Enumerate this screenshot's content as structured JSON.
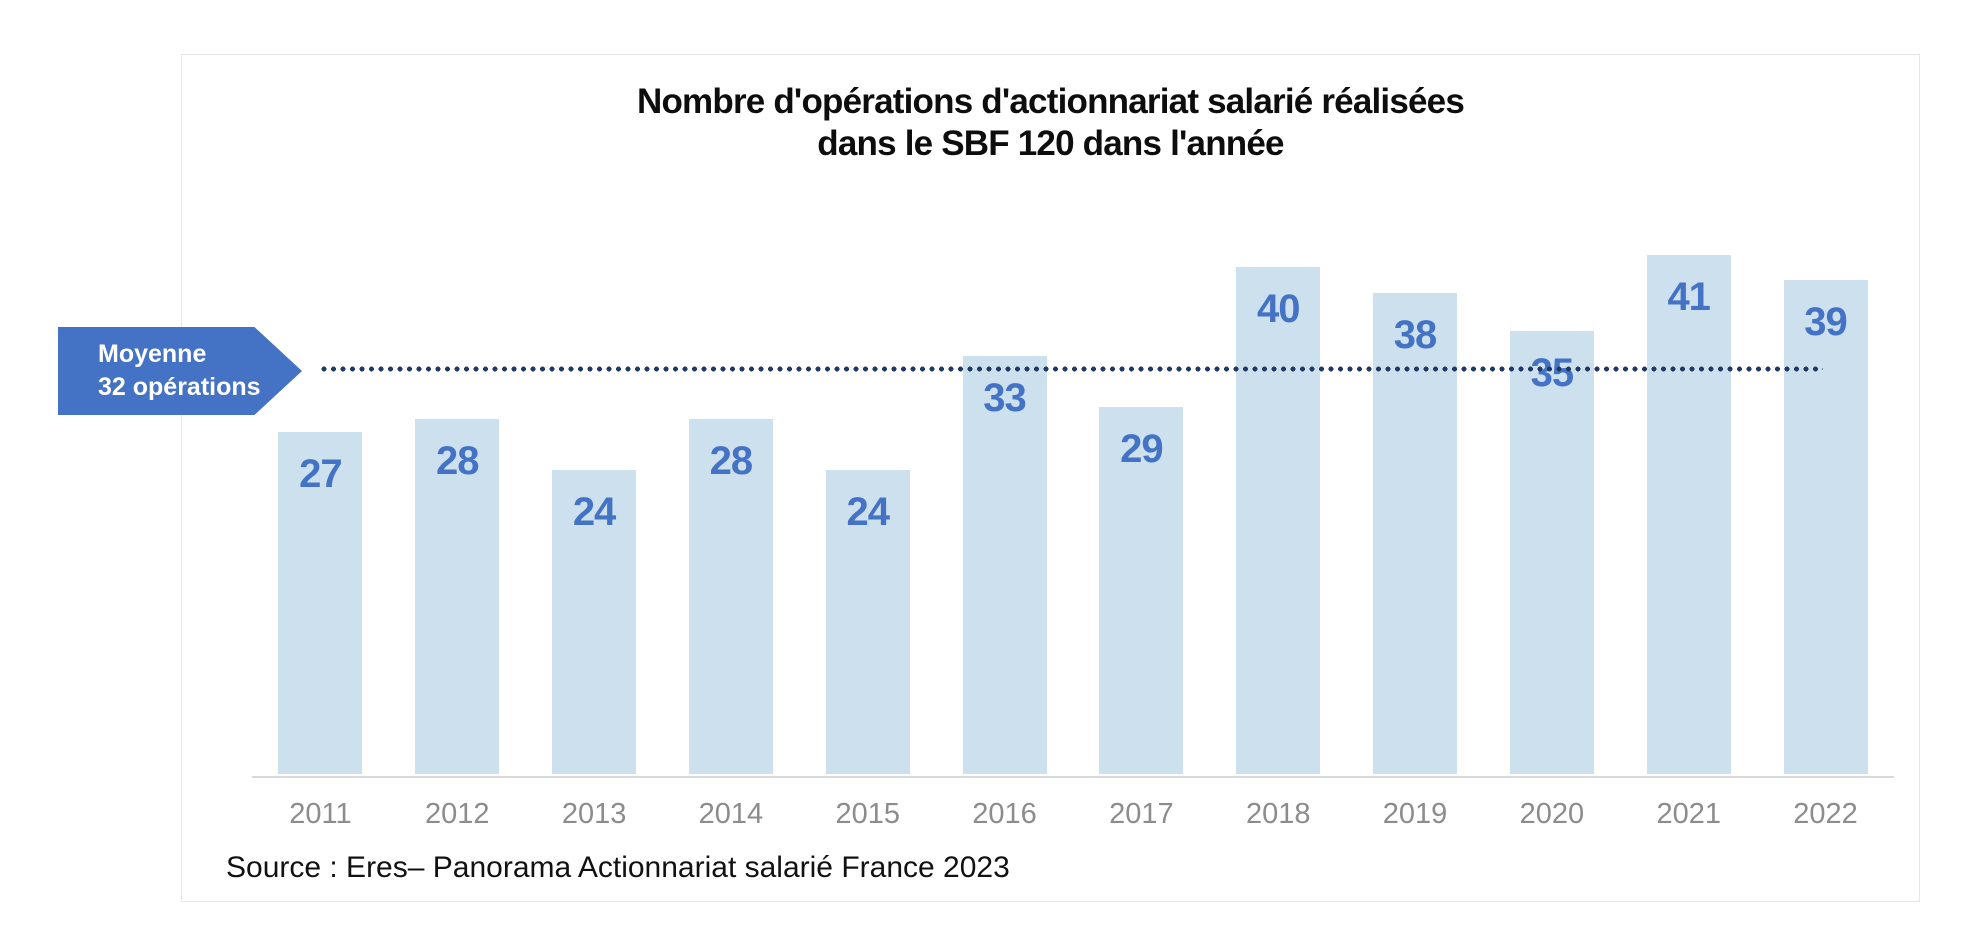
{
  "chart_data": {
    "type": "bar",
    "title_lines": [
      "Nombre d'opérations d'actionnariat salarié réalisées",
      "dans le SBF 120 dans l'année"
    ],
    "categories": [
      "2011",
      "2012",
      "2013",
      "2014",
      "2015",
      "2016",
      "2017",
      "2018",
      "2019",
      "2020",
      "2021",
      "2022"
    ],
    "values": [
      27,
      28,
      24,
      28,
      24,
      33,
      29,
      40,
      38,
      35,
      41,
      39
    ],
    "average": 32,
    "average_badge_lines": [
      "Moyenne",
      "32 opérations"
    ],
    "source": "Source : Eres– Panorama Actionnariat salarié France 2023",
    "colors": {
      "bar_fill": "#cde0ee",
      "bar_value_label": "#4472c4",
      "badge": "#4472c4",
      "average_dotted_line": "#1f3864",
      "axis_line": "#d9d9d9",
      "year_label": "#8c8c8c",
      "title": "#0d0d0d",
      "card_border": "#e6e6e6"
    },
    "layout_hints": {
      "legend": "none",
      "grid": false,
      "y_axis": "hidden",
      "value_labels": "inside-end",
      "average_line_style": "dotted",
      "average_badge_shape": "right-pointing-arrow"
    }
  }
}
